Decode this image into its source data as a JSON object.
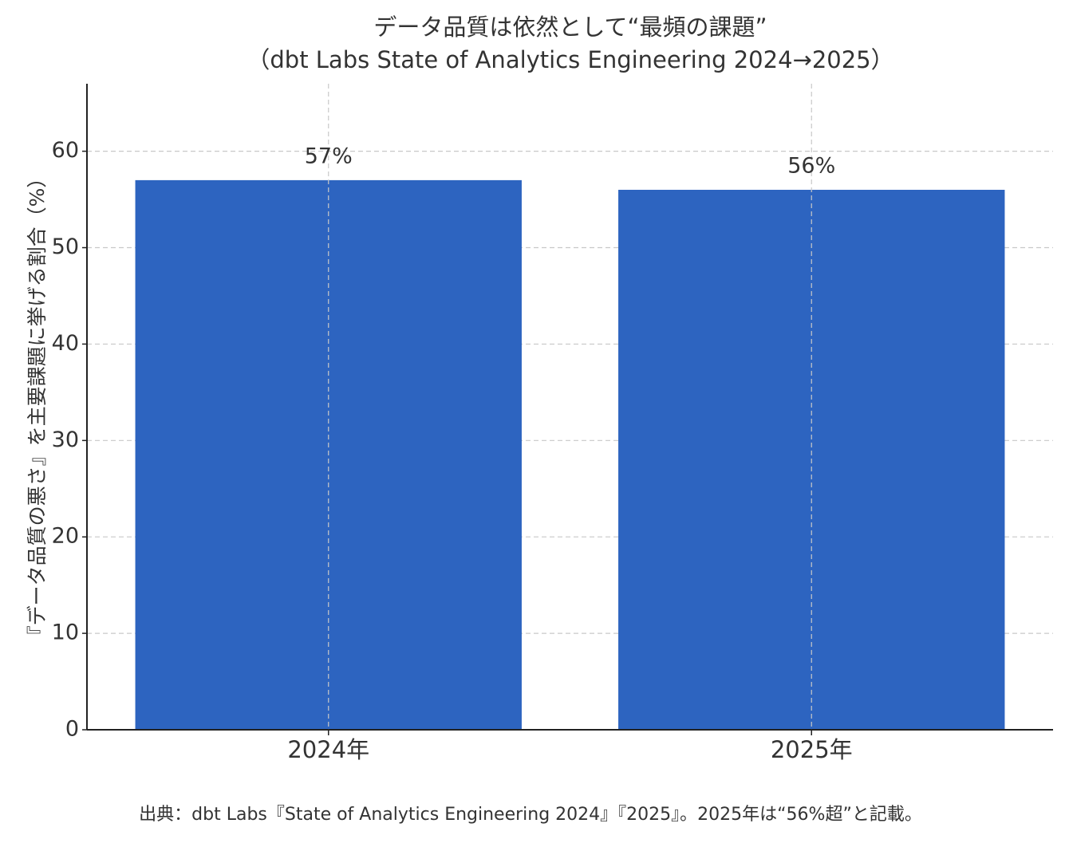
{
  "chart_data": {
    "type": "bar",
    "title": "データ品質は依然として“最頻の課題”",
    "subtitle": "（dbt Labs State of Analytics Engineering 2024→2025）",
    "y_label": "『データ品質の悪さ』を主要課題に挙げる割合（%）",
    "categories": [
      "2024年",
      "2025年"
    ],
    "values": [
      57,
      56
    ],
    "value_labels": [
      "57%",
      "56%"
    ],
    "color": "#2d64c0",
    "ylim": [
      0,
      67
    ],
    "yticks": [
      0,
      10,
      20,
      30,
      40,
      50,
      60
    ],
    "grid": true,
    "footnote": "出典：dbt Labs『State of Analytics Engineering 2024』『2025』。2025年は“56%超”と記載。"
  }
}
